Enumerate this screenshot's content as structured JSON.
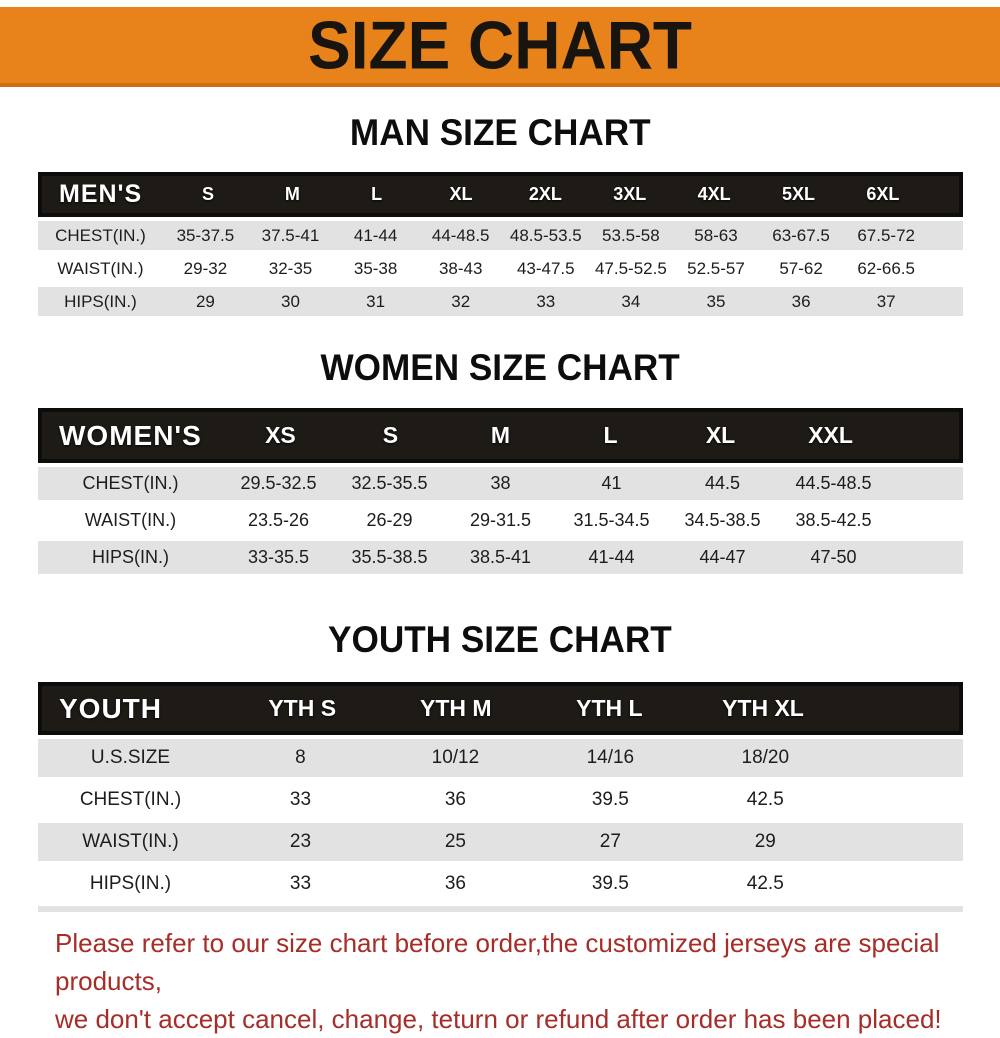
{
  "banner": {
    "title": "SIZE CHART"
  },
  "sections": [
    {
      "id": "man-size-chart",
      "heading": "MAN SIZE CHART",
      "label": "MEN'S",
      "columns": [
        "S",
        "M",
        "L",
        "XL",
        "2XL",
        "3XL",
        "4XL",
        "5XL",
        "6XL"
      ],
      "rows": [
        {
          "label": "CHEST(IN.)",
          "values": [
            "35-37.5",
            "37.5-41",
            "41-44",
            "44-48.5",
            "48.5-53.5",
            "53.5-58",
            "58-63",
            "63-67.5",
            "67.5-72"
          ]
        },
        {
          "label": "WAIST(IN.)",
          "values": [
            "29-32",
            "32-35",
            "35-38",
            "38-43",
            "43-47.5",
            "47.5-52.5",
            "52.5-57",
            "57-62",
            "62-66.5"
          ]
        },
        {
          "label": "HIPS(IN.)",
          "values": [
            "29",
            "30",
            "31",
            "32",
            "33",
            "34",
            "35",
            "36",
            "37"
          ]
        }
      ]
    },
    {
      "id": "women-size-chart",
      "heading": "WOMEN SIZE CHART",
      "label": "WOMEN'S",
      "columns": [
        "XS",
        "S",
        "M",
        "L",
        "XL",
        "XXL"
      ],
      "rows": [
        {
          "label": "CHEST(IN.)",
          "values": [
            "29.5-32.5",
            "32.5-35.5",
            "38",
            "41",
            "44.5",
            "44.5-48.5"
          ]
        },
        {
          "label": "WAIST(IN.)",
          "values": [
            "23.5-26",
            "26-29",
            "29-31.5",
            "31.5-34.5",
            "34.5-38.5",
            "38.5-42.5"
          ]
        },
        {
          "label": "HIPS(IN.)",
          "values": [
            "33-35.5",
            "35.5-38.5",
            "38.5-41",
            "41-44",
            "44-47",
            "47-50"
          ]
        }
      ]
    },
    {
      "id": "youth-size-chart",
      "heading": "YOUTH SIZE CHART",
      "label": "YOUTH",
      "footer_bar": true,
      "columns": [
        "YTH S",
        "YTH M",
        "YTH L",
        "YTH XL"
      ],
      "rows": [
        {
          "label": "U.S.SIZE",
          "values": [
            "8",
            "10/12",
            "14/16",
            "18/20"
          ]
        },
        {
          "label": "CHEST(IN.)",
          "values": [
            "33",
            "36",
            "39.5",
            "42.5"
          ]
        },
        {
          "label": "WAIST(IN.)",
          "values": [
            "23",
            "25",
            "27",
            "29"
          ]
        },
        {
          "label": "HIPS(IN.)",
          "values": [
            "33",
            "36",
            "39.5",
            "42.5"
          ]
        }
      ]
    }
  ],
  "footnote": {
    "line1": "Please refer to our size chart before order,the customized jerseys are special products,",
    "line2": "we don't accept cancel, change, teturn or refund after order has been placed!"
  },
  "colors": {
    "banner_bg": "#E8831C",
    "header_bar_bg": "#1E1A16",
    "stripe": "#E2E2E2",
    "note_text": "#A62D28"
  }
}
